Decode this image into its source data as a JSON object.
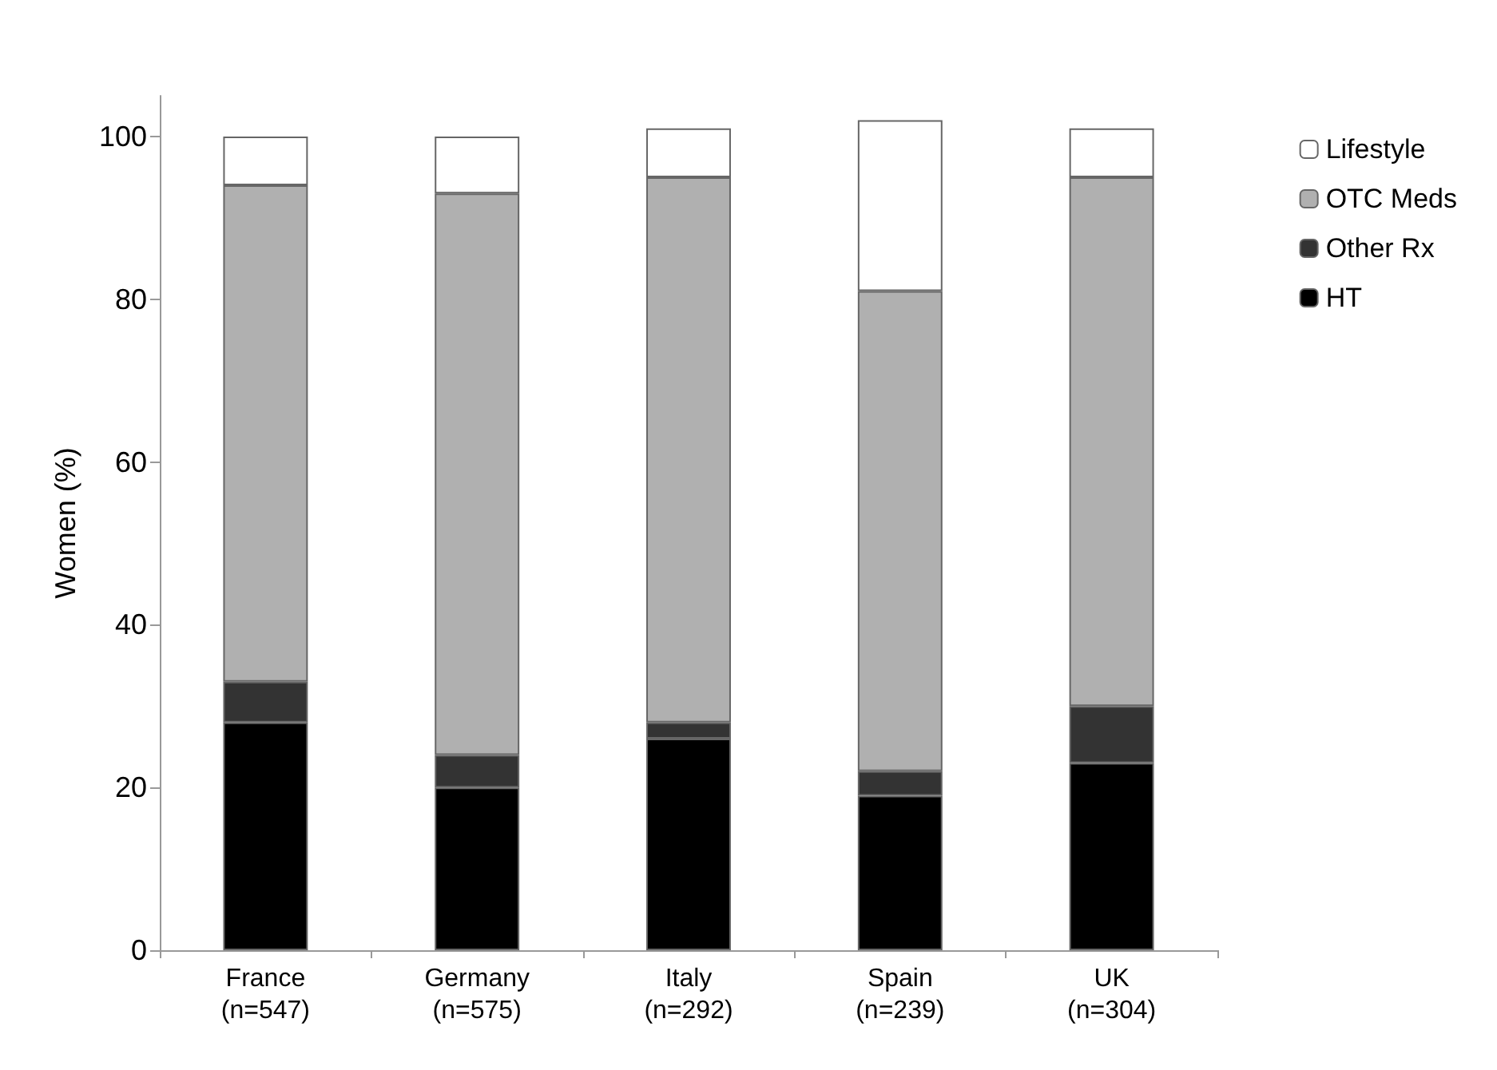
{
  "chart_data": {
    "type": "bar",
    "stacked": true,
    "ylabel": "Women (%)",
    "categories": [
      "France\n(n=547)",
      "Germany\n(n=575)",
      "Italy\n(n=292)",
      "Spain\n(n=239)",
      "UK\n(n=304)"
    ],
    "series": [
      {
        "name": "HT",
        "color": "#000000",
        "values": [
          28,
          20,
          26,
          19,
          23
        ]
      },
      {
        "name": "Other Rx",
        "color": "#333333",
        "values": [
          5,
          4,
          2,
          3,
          7
        ]
      },
      {
        "name": "OTC Meds",
        "color": "#b0b0b0",
        "values": [
          61,
          69,
          67,
          59,
          65
        ]
      },
      {
        "name": "Lifestyle",
        "color": "#ffffff",
        "values": [
          6,
          7,
          6,
          21,
          6
        ]
      }
    ],
    "ylim": [
      0,
      105
    ],
    "yticks": [
      0,
      20,
      40,
      60,
      80,
      100
    ],
    "grid": false,
    "legend": "right"
  }
}
